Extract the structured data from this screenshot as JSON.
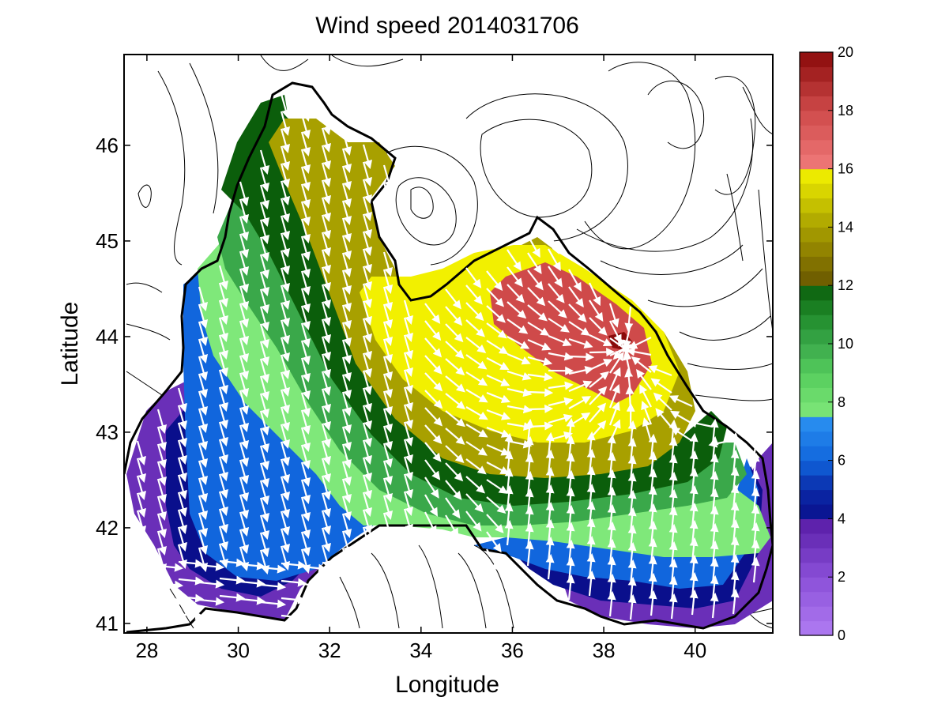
{
  "chart_data": {
    "type": "heatmap",
    "subtype": "filled contour map with wind vectors",
    "title": "Wind speed 2014031706",
    "xlabel": "Longitude",
    "ylabel": "Latitude",
    "xlim": [
      27.5,
      41.7
    ],
    "ylim": [
      40.9,
      46.95
    ],
    "xticks": [
      28,
      30,
      32,
      34,
      36,
      38,
      40
    ],
    "yticks": [
      41,
      42,
      43,
      44,
      45,
      46
    ],
    "grid": false,
    "colorbar": {
      "placement": "right",
      "range": [
        0,
        20
      ],
      "ticks": [
        0,
        2,
        4,
        6,
        8,
        10,
        12,
        14,
        16,
        18,
        20
      ],
      "bands": [
        {
          "from": 0,
          "to": 4,
          "color": "#7b3fc4"
        },
        {
          "from": 4,
          "to": 7.5,
          "color": "#1f5fd6"
        },
        {
          "from": 7.5,
          "to": 12,
          "color": "#3aa84a"
        },
        {
          "from": 12,
          "to": 16,
          "color": "#a8a000"
        },
        {
          "from": 16,
          "to": 20,
          "color": "#e04848"
        }
      ]
    },
    "contour_levels": [
      {
        "level": 2,
        "color": "#6a2fb8"
      },
      {
        "level": 4,
        "color": "#0a0f8c"
      },
      {
        "level": 6,
        "color": "#1f5fd6"
      },
      {
        "level": 8,
        "color": "#7fe87a"
      },
      {
        "level": 10,
        "color": "#3aa84a"
      },
      {
        "level": 12,
        "color": "#0b5e0b"
      },
      {
        "level": 14,
        "color": "#a8a000"
      },
      {
        "level": 16,
        "color": "#f2f000"
      },
      {
        "level": 18,
        "color": "#cf4a4a"
      },
      {
        "level": 20,
        "color": "#8a0a0a"
      }
    ],
    "max_region": {
      "lon": 38.3,
      "lat": 43.95,
      "speed": 19.5
    },
    "wind_direction_summary": "predominantly north-northwest to south-southeast over western and central sea; cyclonic convergence toward the southeast near 38-40E, 42-44N"
  }
}
